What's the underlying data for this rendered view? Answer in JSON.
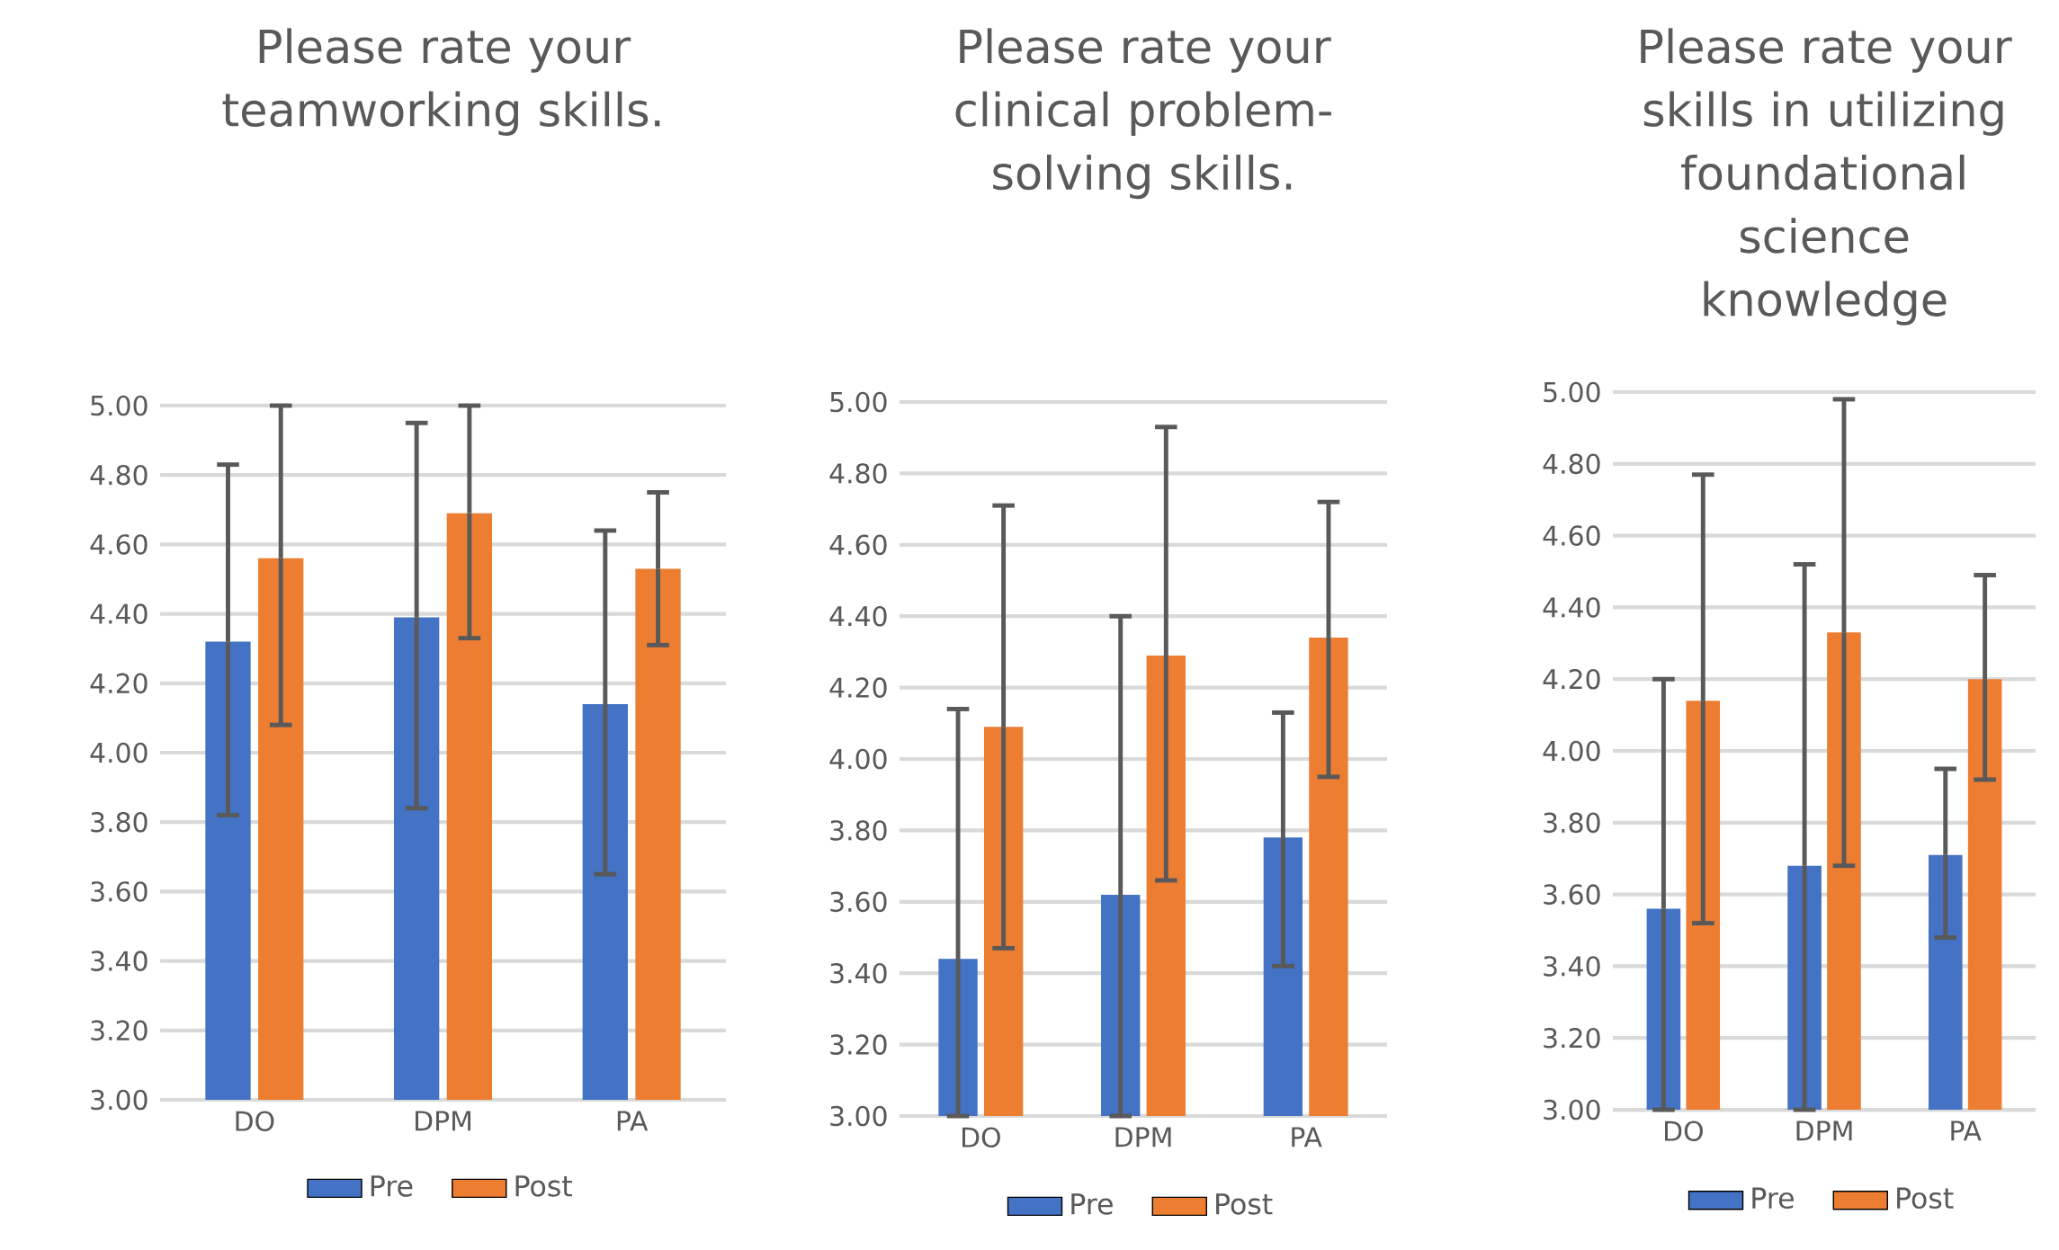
{
  "chart_data": [
    {
      "type": "bar",
      "title": "Please rate your teamworking skills.",
      "categories": [
        "DO",
        "DPM",
        "PA"
      ],
      "series": [
        {
          "name": "Pre",
          "color": "#4472c4",
          "values": [
            4.32,
            4.39,
            4.14
          ],
          "errors": [
            [
              3.82,
              4.83
            ],
            [
              3.84,
              4.95
            ],
            [
              3.65,
              4.64
            ]
          ]
        },
        {
          "name": "Post",
          "color": "#ed7d31",
          "values": [
            4.56,
            4.69,
            4.53
          ],
          "errors": [
            [
              4.08,
              5.0
            ],
            [
              4.33,
              5.0
            ],
            [
              4.31,
              4.75
            ]
          ]
        }
      ],
      "ylim": [
        3,
        5
      ],
      "yticks": [
        {
          "value": 3,
          "label": "3.00"
        },
        {
          "value": 3.2,
          "label": "3.20"
        },
        {
          "value": 3.4,
          "label": "3.40"
        },
        {
          "value": 3.6,
          "label": "3.60"
        },
        {
          "value": 3.8,
          "label": "3.80"
        },
        {
          "value": 4,
          "label": "4.00"
        },
        {
          "value": 4.2,
          "label": "4.20"
        },
        {
          "value": 4.4,
          "label": "4.40"
        },
        {
          "value": 4.6,
          "label": "4.60"
        },
        {
          "value": 4.8,
          "label": "4.80"
        },
        {
          "value": 5,
          "label": "5.00"
        }
      ],
      "grid": "y",
      "legend": "bottom"
    },
    {
      "type": "bar",
      "title": "Please rate your clinical problem-solving skills.",
      "categories": [
        "DO",
        "DPM",
        "PA"
      ],
      "series": [
        {
          "name": "Pre",
          "color": "#4472c4",
          "values": [
            3.44,
            3.62,
            3.78
          ],
          "errors": [
            [
              3.0,
              4.14
            ],
            [
              3.0,
              4.4
            ],
            [
              3.42,
              4.13
            ]
          ]
        },
        {
          "name": "Post",
          "color": "#ed7d31",
          "values": [
            4.09,
            4.29,
            4.34
          ],
          "errors": [
            [
              3.47,
              4.71
            ],
            [
              3.66,
              4.93
            ],
            [
              3.95,
              4.72
            ]
          ]
        }
      ],
      "ylim": [
        3,
        5
      ],
      "yticks": [
        {
          "value": 3,
          "label": "3.00"
        },
        {
          "value": 3.2,
          "label": "3.20"
        },
        {
          "value": 3.4,
          "label": "3.40"
        },
        {
          "value": 3.6,
          "label": "3.60"
        },
        {
          "value": 3.8,
          "label": "3.80"
        },
        {
          "value": 4,
          "label": "4.00"
        },
        {
          "value": 4.2,
          "label": "4.20"
        },
        {
          "value": 4.4,
          "label": "4.40"
        },
        {
          "value": 4.6,
          "label": "4.60"
        },
        {
          "value": 4.8,
          "label": "4.80"
        },
        {
          "value": 5,
          "label": "5.00"
        }
      ],
      "grid": "y",
      "legend": "bottom"
    },
    {
      "type": "bar",
      "title": "Please rate your skills in utilizing foundational science knowledge",
      "categories": [
        "DO",
        "DPM",
        "PA"
      ],
      "series": [
        {
          "name": "Pre",
          "color": "#4472c4",
          "values": [
            3.56,
            3.68,
            3.71
          ],
          "errors": [
            [
              3.0,
              4.2
            ],
            [
              3.0,
              4.52
            ],
            [
              3.48,
              3.95
            ]
          ]
        },
        {
          "name": "Post",
          "color": "#ed7d31",
          "values": [
            4.14,
            4.33,
            4.2
          ],
          "errors": [
            [
              3.52,
              4.77
            ],
            [
              3.68,
              4.98
            ],
            [
              3.92,
              4.49
            ]
          ]
        }
      ],
      "ylim": [
        3,
        5
      ],
      "yticks": [
        {
          "value": 3,
          "label": "3.00"
        },
        {
          "value": 3.2,
          "label": "3.20"
        },
        {
          "value": 3.4,
          "label": "3.40"
        },
        {
          "value": 3.6,
          "label": "3.60"
        },
        {
          "value": 3.8,
          "label": "3.80"
        },
        {
          "value": 4,
          "label": "4.00"
        },
        {
          "value": 4.2,
          "label": "4.20"
        },
        {
          "value": 4.4,
          "label": "4.40"
        },
        {
          "value": 4.6,
          "label": "4.60"
        },
        {
          "value": 4.8,
          "label": "4.80"
        },
        {
          "value": 5,
          "label": "5.00"
        }
      ],
      "grid": "y",
      "legend": "bottom"
    }
  ]
}
